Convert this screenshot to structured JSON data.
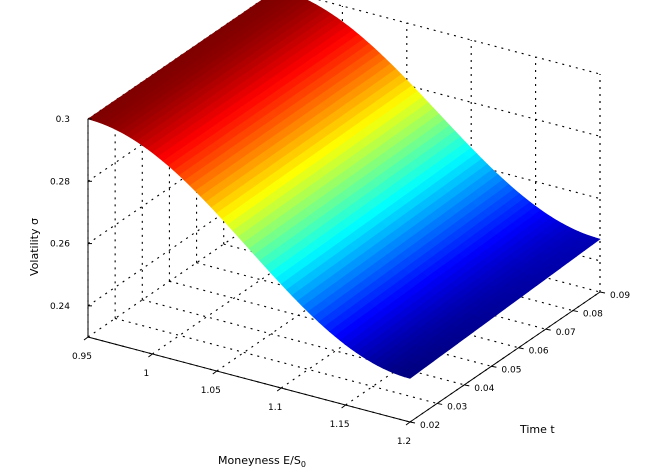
{
  "chart_data": {
    "type": "surface",
    "title": "",
    "colormap": "jet",
    "xlabel": "Moneyness E/S0",
    "xlabel_main": "Moneyness E/S",
    "xlabel_sub": "0",
    "ylabel": "Time t",
    "zlabel": "Volatility σ",
    "xlim": [
      0.95,
      1.2
    ],
    "ylim": [
      0.02,
      0.09
    ],
    "zlim": [
      0.23,
      0.3
    ],
    "x_ticks": [
      "0.95",
      "1",
      "1.05",
      "1.1",
      "1.15",
      "1.2"
    ],
    "y_ticks": [
      "0.02",
      "0.03",
      "0.04",
      "0.05",
      "0.06",
      "0.07",
      "0.08",
      "0.09"
    ],
    "z_ticks": [
      "0.24",
      "0.26",
      "0.28",
      "0.3"
    ],
    "grid": true,
    "corners": [
      {
        "x": 0.95,
        "y": 0.02,
        "z": 0.3
      },
      {
        "x": 0.95,
        "y": 0.09,
        "z": 0.3
      },
      {
        "x": 1.2,
        "y": 0.02,
        "z": 0.244
      },
      {
        "x": 1.2,
        "y": 0.09,
        "z": 0.247
      }
    ]
  }
}
